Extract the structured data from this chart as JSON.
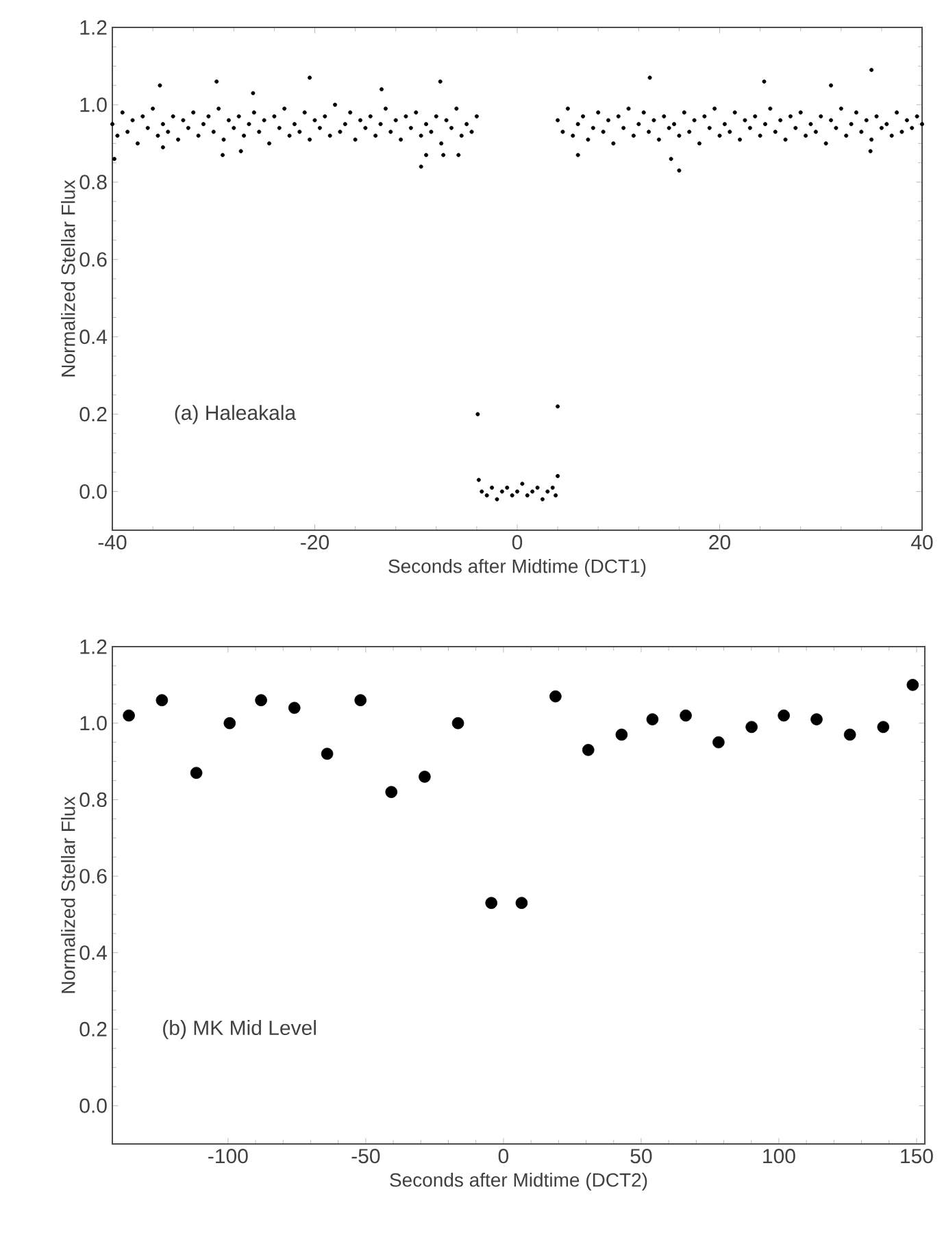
{
  "chart_data": [
    {
      "type": "scatter",
      "xlabel": "Seconds after Midtime (DCT1)",
      "ylabel": "Normalized Stellar Flux",
      "annotations": [
        "(a) Haleakala"
      ],
      "marker": "circle",
      "color": "#000000",
      "xlim": [
        -40,
        40
      ],
      "ylim": [
        -0.1,
        1.2
      ],
      "xticks": [
        -40,
        -20,
        0,
        20,
        40
      ],
      "yticks": [
        {
          "value": 0,
          "label": "0.0"
        },
        {
          "value": 0.2,
          "label": "0.2"
        },
        {
          "value": 0.4,
          "label": "0.4"
        },
        {
          "value": 0.6,
          "label": "0.6"
        },
        {
          "value": 0.8,
          "label": "0.8"
        },
        {
          "value": 1,
          "label": "1.0"
        },
        {
          "value": 1.2,
          "label": "1.2"
        }
      ],
      "x": [
        -40,
        -39.5,
        -39,
        -38.5,
        -38,
        -37.5,
        -37,
        -36.5,
        -36,
        -35.5,
        -35,
        -34.5,
        -34,
        -33.5,
        -33,
        -32.5,
        -32,
        -31.5,
        -31,
        -30.5,
        -30,
        -29.5,
        -29,
        -28.5,
        -28,
        -27.5,
        -27,
        -26.5,
        -26,
        -25.5,
        -25,
        -24.5,
        -24,
        -23.5,
        -23,
        -22.5,
        -22,
        -21.5,
        -21,
        -20.5,
        -20,
        -19.5,
        -19,
        -18.5,
        -18,
        -17.5,
        -17,
        -16.5,
        -16,
        -15.5,
        -15,
        -14.5,
        -14,
        -13.5,
        -13,
        -12.5,
        -12,
        -11.5,
        -11,
        -10.5,
        -10,
        -9.5,
        -9,
        -8.5,
        -8,
        -7.5,
        -7,
        -6.5,
        -6,
        -5.5,
        -5,
        -4.5,
        -4,
        4,
        4.5,
        5,
        5.5,
        6,
        6.5,
        7,
        7.5,
        8,
        8.5,
        9,
        9.5,
        10,
        10.5,
        11,
        11.5,
        12,
        12.5,
        13,
        13.5,
        14,
        14.5,
        15,
        15.5,
        16,
        16.5,
        17,
        17.5,
        18,
        18.5,
        19,
        19.5,
        20,
        20.5,
        21,
        21.5,
        22,
        22.5,
        23,
        23.5,
        24,
        24.5,
        25,
        25.5,
        26,
        26.5,
        27,
        27.5,
        28,
        28.5,
        29,
        29.5,
        30,
        30.5,
        31,
        31.5,
        32,
        32.5,
        33,
        33.5,
        34,
        34.5,
        35,
        35.5,
        36,
        36.5,
        37,
        37.5,
        38,
        38.5,
        39,
        39.5,
        40,
        -39.8,
        -35.3,
        -35.0,
        -29.7,
        -29.1,
        -27.3,
        -26.1,
        -20.5,
        -13.4,
        -9.5,
        -9.0,
        -7.6,
        -7.3,
        -5.8,
        6.0,
        13.1,
        15.2,
        16.0,
        24.4,
        31.0,
        34.9,
        35.0,
        -3.8,
        -3.5,
        -3,
        -2.5,
        -2,
        -1.5,
        -1,
        -0.5,
        0,
        0.5,
        1,
        1.5,
        2,
        2.5,
        3,
        3.5,
        3.8,
        -3.9,
        4.0,
        4.0
      ],
      "values": [
        0.95,
        0.92,
        0.98,
        0.93,
        0.96,
        0.9,
        0.97,
        0.94,
        0.99,
        0.92,
        0.95,
        0.93,
        0.97,
        0.91,
        0.96,
        0.94,
        0.98,
        0.92,
        0.95,
        0.97,
        0.93,
        0.99,
        0.91,
        0.96,
        0.94,
        0.97,
        0.92,
        0.95,
        0.98,
        0.93,
        0.96,
        0.9,
        0.97,
        0.94,
        0.99,
        0.92,
        0.95,
        0.93,
        0.98,
        0.91,
        0.96,
        0.94,
        0.97,
        0.92,
        1.0,
        0.93,
        0.95,
        0.98,
        0.91,
        0.96,
        0.94,
        0.97,
        0.92,
        0.95,
        0.99,
        0.93,
        0.96,
        0.91,
        0.97,
        0.94,
        0.98,
        0.92,
        0.95,
        0.93,
        0.97,
        0.9,
        0.96,
        0.94,
        0.99,
        0.92,
        0.95,
        0.93,
        0.97,
        0.96,
        0.93,
        0.99,
        0.92,
        0.95,
        0.97,
        0.91,
        0.94,
        0.98,
        0.93,
        0.96,
        0.9,
        0.97,
        0.94,
        0.99,
        0.92,
        0.95,
        0.98,
        0.93,
        0.96,
        0.91,
        0.97,
        0.94,
        0.95,
        0.92,
        0.98,
        0.93,
        0.96,
        0.9,
        0.97,
        0.94,
        0.99,
        0.92,
        0.95,
        0.93,
        0.98,
        0.91,
        0.96,
        0.94,
        0.97,
        0.92,
        0.95,
        0.99,
        0.93,
        0.96,
        0.91,
        0.97,
        0.94,
        0.98,
        0.92,
        0.95,
        0.93,
        0.97,
        0.9,
        0.96,
        0.94,
        0.99,
        0.92,
        0.95,
        0.98,
        0.93,
        0.96,
        0.91,
        0.97,
        0.94,
        0.95,
        0.92,
        0.98,
        0.93,
        0.96,
        0.94,
        0.97,
        0.95,
        0.86,
        1.05,
        0.89,
        1.06,
        0.87,
        0.88,
        1.03,
        1.07,
        1.04,
        0.84,
        0.87,
        1.06,
        0.87,
        0.87,
        0.87,
        1.07,
        0.86,
        0.83,
        1.06,
        1.05,
        0.88,
        1.09,
        0.03,
        0.0,
        -0.01,
        0.01,
        -0.02,
        0.0,
        0.01,
        -0.01,
        0.0,
        0.02,
        -0.01,
        0.0,
        0.01,
        -0.02,
        0.0,
        0.01,
        -0.01,
        0.2,
        0.22,
        0.04
      ]
    },
    {
      "type": "scatter",
      "xlabel": "Seconds after Midtime (DCT2)",
      "ylabel": "Normalized Stellar Flux",
      "annotations": [
        "(b) MK Mid Level"
      ],
      "marker": "circle",
      "color": "#000000",
      "xlim": [
        -142,
        153
      ],
      "ylim": [
        -0.1,
        1.2
      ],
      "xticks": [
        -100,
        -50,
        0,
        50,
        100,
        150
      ],
      "yticks": [
        {
          "value": 0,
          "label": "0.0"
        },
        {
          "value": 0.2,
          "label": "0.2"
        },
        {
          "value": 0.4,
          "label": "0.4"
        },
        {
          "value": 0.6,
          "label": "0.6"
        },
        {
          "value": 0.8,
          "label": "0.8"
        },
        {
          "value": 1,
          "label": "1.0"
        },
        {
          "value": 1.2,
          "label": "1.2"
        }
      ],
      "x": [
        -136,
        -124,
        -111.5,
        -99.4,
        -88,
        -75.9,
        -64,
        -51.9,
        -40.7,
        -28.6,
        -16.5,
        -4.4,
        6.6,
        18.9,
        30.8,
        42.9,
        54.1,
        66.2,
        78.1,
        90.1,
        101.8,
        113.7,
        125.8,
        137.9,
        148.6
      ],
      "values": [
        1.02,
        1.06,
        0.87,
        1.0,
        1.06,
        1.04,
        0.92,
        1.06,
        0.82,
        0.86,
        1.0,
        0.53,
        0.53,
        1.07,
        0.93,
        0.97,
        1.01,
        1.02,
        0.95,
        0.99,
        1.02,
        1.01,
        0.97,
        0.99,
        1.1
      ]
    }
  ]
}
